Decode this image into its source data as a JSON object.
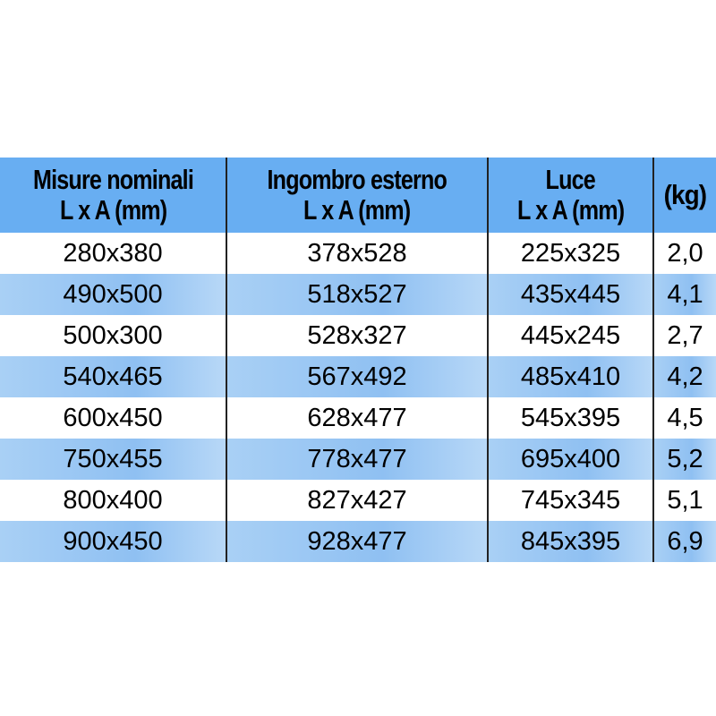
{
  "headers": [
    {
      "line1": "Misure nominali",
      "line2": "L x A (mm)"
    },
    {
      "line1": "Ingombro esterno",
      "line2": "L x A (mm)"
    },
    {
      "line1": "Luce",
      "line2": "L x A (mm)"
    },
    {
      "line1": "(kg)",
      "line2": ""
    }
  ],
  "rows": [
    [
      "280x380",
      "378x528",
      "225x325",
      "2,0"
    ],
    [
      "490x500",
      "518x527",
      "435x445",
      "4,1"
    ],
    [
      "500x300",
      "528x327",
      "445x245",
      "2,7"
    ],
    [
      "540x465",
      "567x492",
      "485x410",
      "4,2"
    ],
    [
      "600x450",
      "628x477",
      "545x395",
      "4,5"
    ],
    [
      "750x455",
      "778x477",
      "695x400",
      "5,2"
    ],
    [
      "800x400",
      "827x427",
      "745x345",
      "5,1"
    ],
    [
      "900x450",
      "928x477",
      "845x395",
      "6,9"
    ]
  ],
  "colors": {
    "header": "#68aef2",
    "alt_row": "#a9d0f5",
    "row": "#ffffff"
  }
}
